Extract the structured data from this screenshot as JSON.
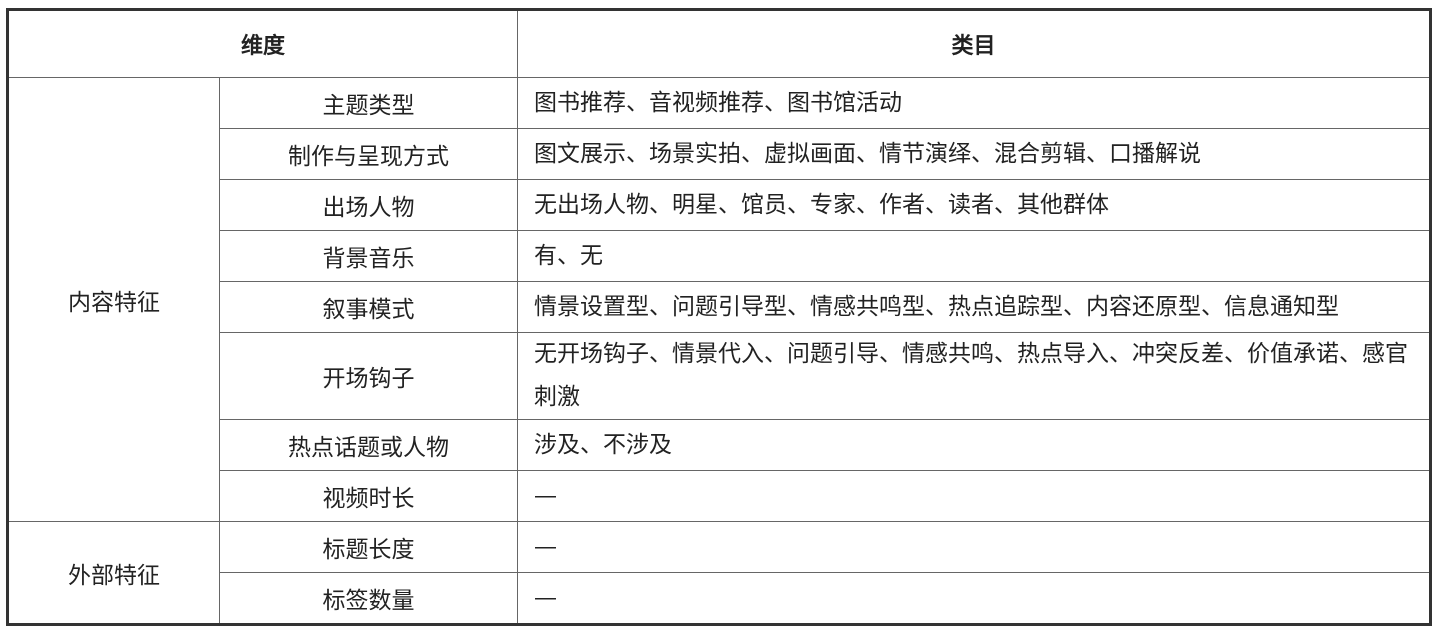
{
  "header": {
    "dimension": "维度",
    "category": "类目"
  },
  "groups": [
    {
      "label": "内容特征",
      "rows": [
        {
          "name": "主题类型",
          "value": "图书推荐、音视频推荐、图书馆活动"
        },
        {
          "name": "制作与呈现方式",
          "value": "图文展示、场景实拍、虚拟画面、情节演绎、混合剪辑、口播解说"
        },
        {
          "name": "出场人物",
          "value": "无出场人物、明星、馆员、专家、作者、读者、其他群体"
        },
        {
          "name": "背景音乐",
          "value": "有、无"
        },
        {
          "name": "叙事模式",
          "value": "情景设置型、问题引导型、情感共鸣型、热点追踪型、内容还原型、信息通知型"
        },
        {
          "name": "开场钩子",
          "value": "无开场钩子、情景代入、问题引导、情感共鸣、热点导入、冲突反差、价值承诺、感官刺激"
        },
        {
          "name": "热点话题或人物",
          "value": "涉及、不涉及"
        },
        {
          "name": "视频时长",
          "value": "—"
        }
      ]
    },
    {
      "label": "外部特征",
      "rows": [
        {
          "name": "标题长度",
          "value": "—"
        },
        {
          "name": "标签数量",
          "value": "—"
        }
      ]
    }
  ]
}
